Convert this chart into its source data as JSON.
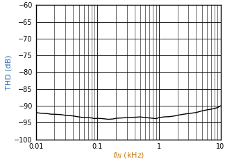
{
  "title": "",
  "xlabel_color": "#c8821a",
  "ylabel_color": "#2e6db4",
  "curve_color": "#000000",
  "curve_linewidth": 1.0,
  "background_color": "#ffffff",
  "xlim": [
    0.01,
    10
  ],
  "ylim": [
    -100,
    -60
  ],
  "yticks": [
    -100,
    -95,
    -90,
    -85,
    -80,
    -75,
    -70,
    -65,
    -60
  ],
  "major_xticks": [
    0.01,
    0.1,
    1,
    10
  ],
  "major_xlabels": [
    "0.01",
    "0.1",
    "1",
    "10"
  ],
  "x_data": [
    0.01,
    0.012,
    0.015,
    0.018,
    0.02,
    0.025,
    0.03,
    0.04,
    0.05,
    0.06,
    0.07,
    0.08,
    0.09,
    0.1,
    0.12,
    0.15,
    0.18,
    0.2,
    0.25,
    0.3,
    0.4,
    0.5,
    0.6,
    0.7,
    0.8,
    0.9,
    1.0,
    1.2,
    1.5,
    1.8,
    2.0,
    2.5,
    3.0,
    4.0,
    5.0,
    6.0,
    7.0,
    8.0,
    9.0,
    10.0
  ],
  "y_data": [
    -92.0,
    -92.2,
    -92.3,
    -92.5,
    -92.5,
    -92.6,
    -92.8,
    -93.0,
    -93.3,
    -93.5,
    -93.5,
    -93.6,
    -93.8,
    -93.7,
    -93.8,
    -94.0,
    -93.9,
    -93.7,
    -93.6,
    -93.5,
    -93.4,
    -93.3,
    -93.5,
    -93.6,
    -93.7,
    -93.8,
    -93.5,
    -93.3,
    -93.2,
    -93.0,
    -92.8,
    -92.5,
    -92.3,
    -92.0,
    -91.5,
    -91.2,
    -91.0,
    -90.8,
    -90.5,
    -90.0
  ],
  "tick_labelsize": 7,
  "label_fontsize": 8
}
